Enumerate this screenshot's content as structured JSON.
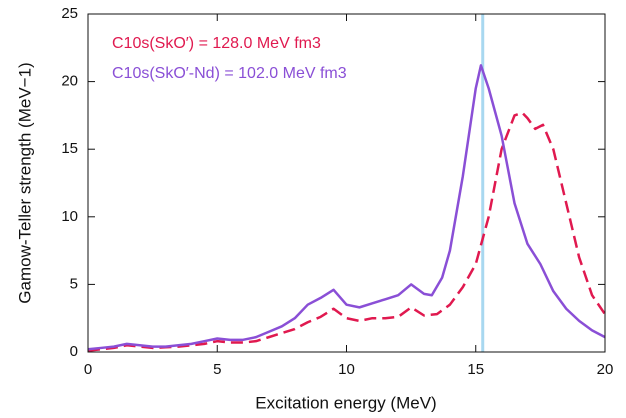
{
  "chart_data": {
    "type": "line",
    "x_label": "Excitation energy (MeV)",
    "y_label": "Gamow-Teller strength (MeV−1)",
    "xlim": [
      0,
      20
    ],
    "ylim": [
      0,
      25
    ],
    "xticks": [
      0,
      5,
      10,
      15,
      20
    ],
    "yticks": [
      0,
      5,
      10,
      15,
      20,
      25
    ],
    "vline": {
      "x": 15.27,
      "color": "#a8d8f0"
    },
    "legend": "upper left",
    "series": [
      {
        "name": "C10s(SkO′) = 128.0 MeV fm3",
        "color": "#e0194f",
        "dash": true,
        "x": [
          0,
          0.5,
          1,
          1.5,
          2,
          2.5,
          3,
          3.5,
          4,
          4.5,
          5,
          5.5,
          6,
          6.5,
          7,
          7.5,
          8,
          8.5,
          9,
          9.5,
          10,
          10.5,
          11,
          11.5,
          12,
          12.5,
          13,
          13.5,
          14,
          14.5,
          15,
          15.5,
          16,
          16.5,
          16.8,
          17,
          17.3,
          17.6,
          18,
          18.5,
          19,
          19.5,
          20
        ],
        "values": [
          0.1,
          0.2,
          0.3,
          0.5,
          0.4,
          0.3,
          0.35,
          0.4,
          0.5,
          0.6,
          0.8,
          0.7,
          0.7,
          0.8,
          1.1,
          1.4,
          1.7,
          2.2,
          2.6,
          3.2,
          2.5,
          2.3,
          2.5,
          2.5,
          2.6,
          3.3,
          2.7,
          2.8,
          3.5,
          4.8,
          6.5,
          10,
          15,
          17.5,
          17.7,
          17.3,
          16.5,
          16.8,
          15,
          11,
          7,
          4.2,
          2.8
        ]
      },
      {
        "name": "C10s(SkO′-Nd) = 102.0 MeV fm3",
        "color": "#8a4fd6",
        "dash": false,
        "x": [
          0,
          0.5,
          1,
          1.5,
          2,
          2.5,
          3,
          3.5,
          4,
          4.5,
          5,
          5.5,
          6,
          6.5,
          7,
          7.5,
          8,
          8.5,
          9,
          9.5,
          10,
          10.5,
          11,
          11.5,
          12,
          12.5,
          13,
          13.3,
          13.7,
          14,
          14.5,
          15,
          15.2,
          15.5,
          16,
          16.5,
          17,
          17.5,
          18,
          18.5,
          19,
          19.5,
          20
        ],
        "values": [
          0.2,
          0.3,
          0.4,
          0.6,
          0.5,
          0.4,
          0.4,
          0.5,
          0.6,
          0.8,
          1.0,
          0.9,
          0.9,
          1.1,
          1.5,
          1.9,
          2.5,
          3.5,
          4.0,
          4.6,
          3.5,
          3.3,
          3.6,
          3.9,
          4.2,
          5.0,
          4.3,
          4.2,
          5.5,
          7.5,
          13,
          19.5,
          21.2,
          19.5,
          16,
          11,
          8,
          6.5,
          4.5,
          3.2,
          2.3,
          1.6,
          1.1
        ]
      }
    ]
  }
}
